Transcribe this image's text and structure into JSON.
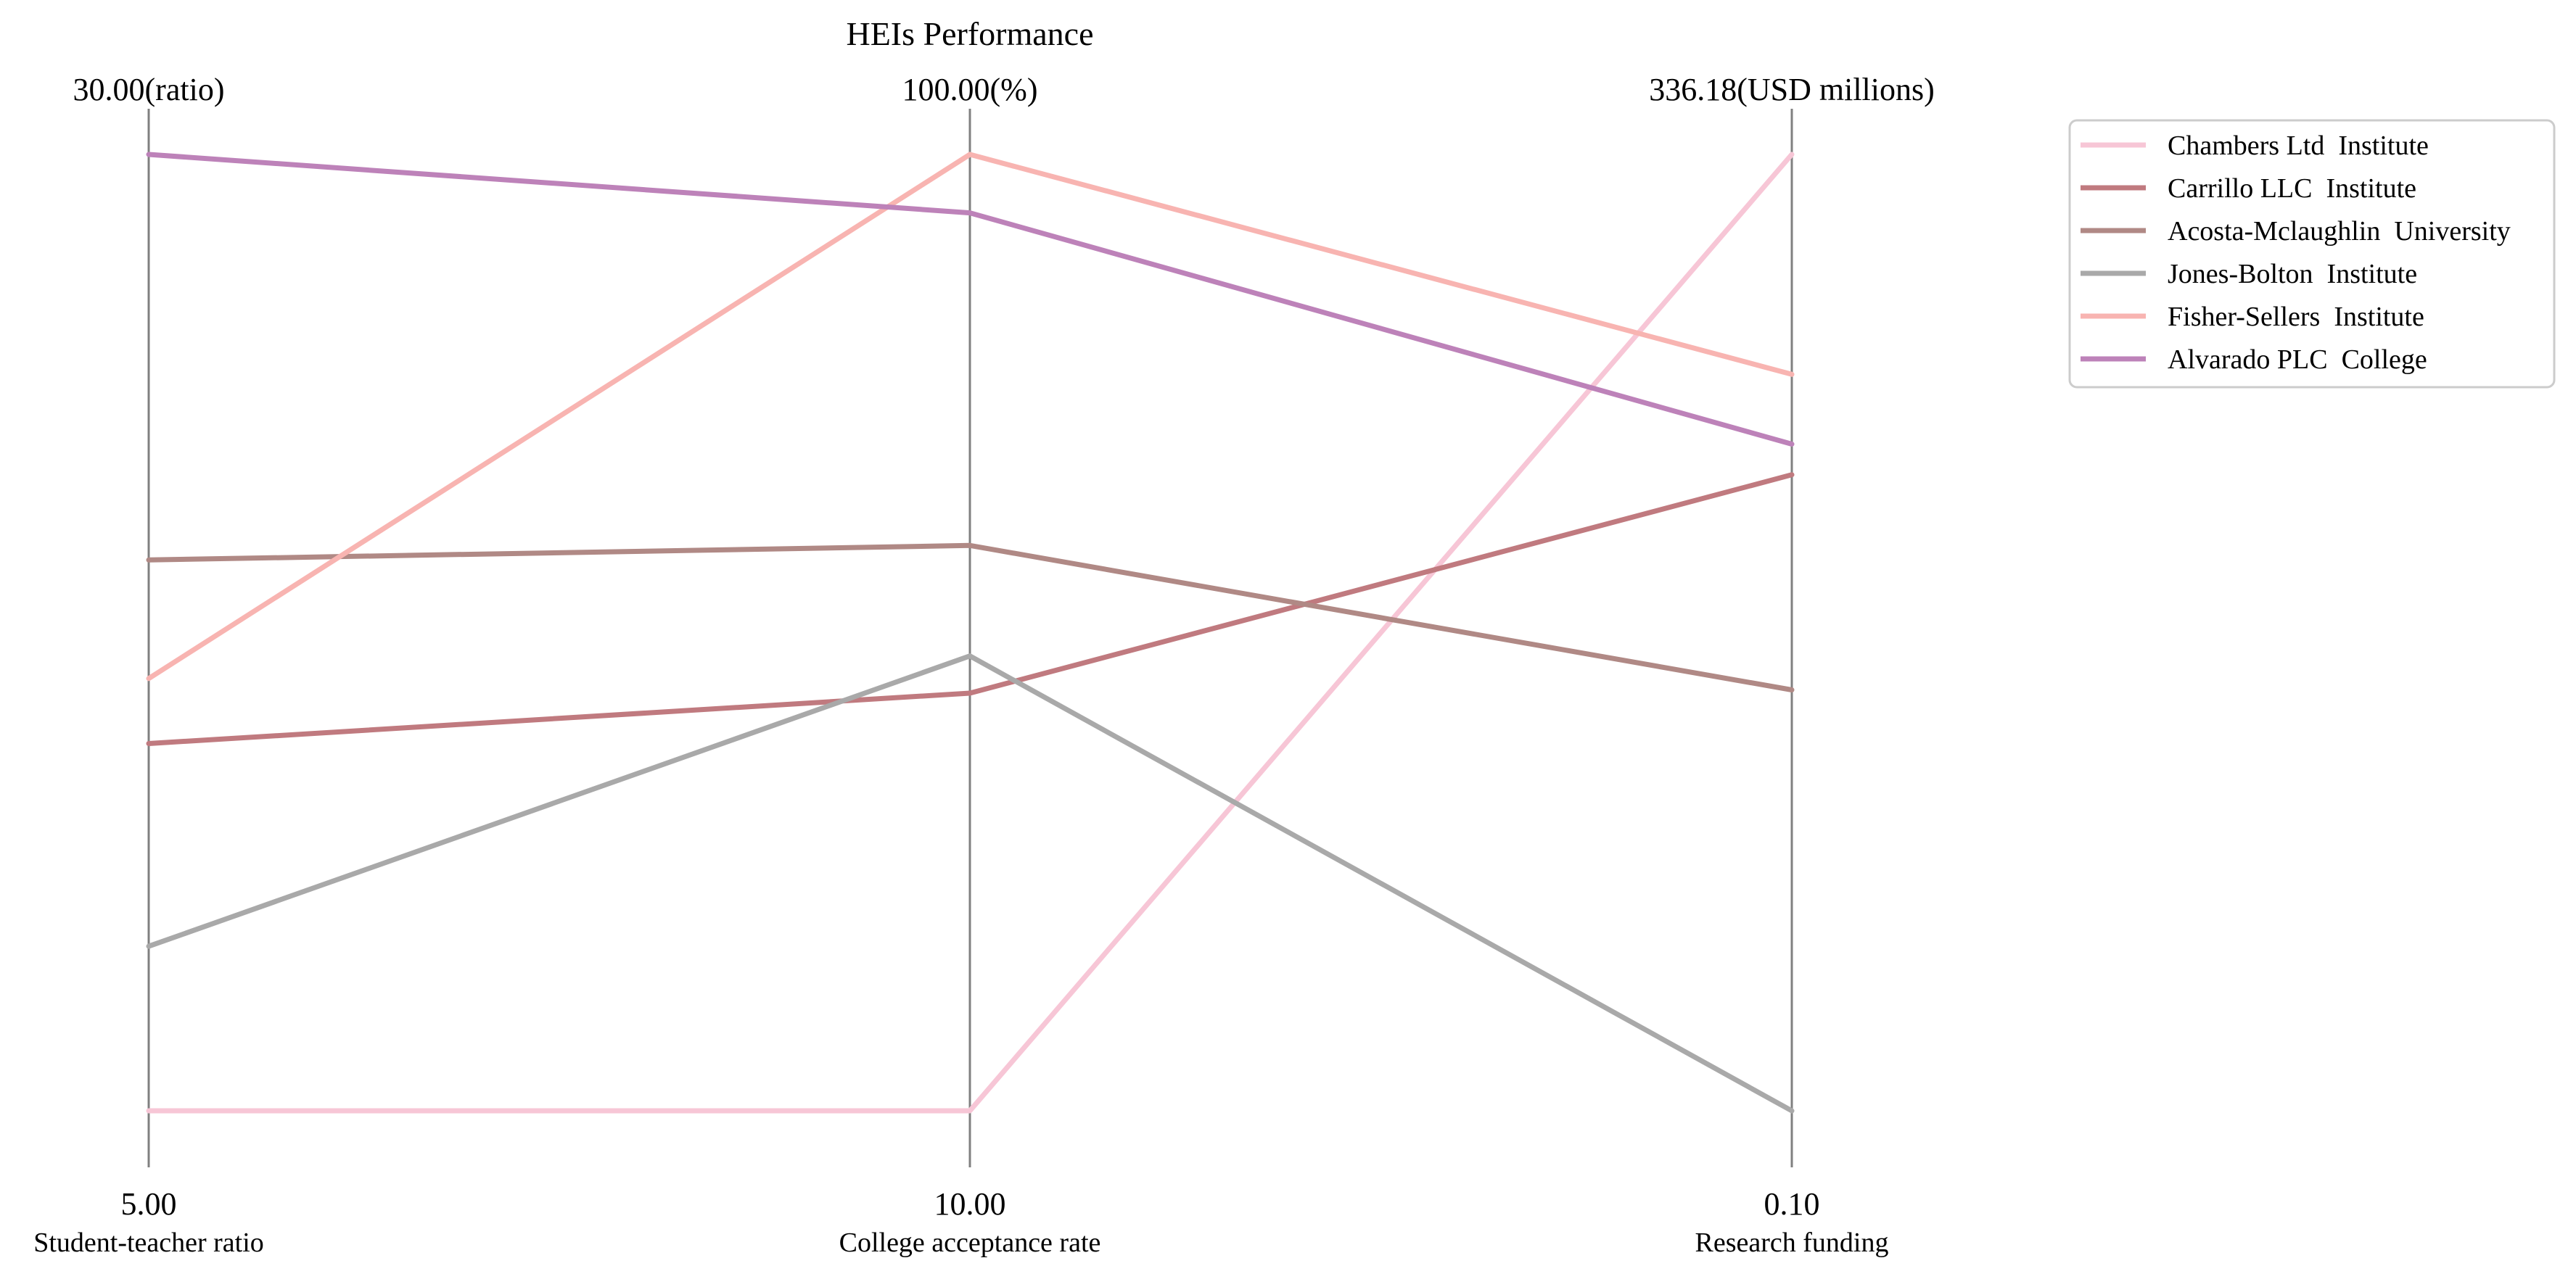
{
  "chart_data": {
    "type": "parallel_coordinates",
    "title": "HEIs Performance",
    "axes": [
      {
        "name": "Student-teacher ratio",
        "unit": "ratio",
        "min": 5.0,
        "max": 30.0,
        "min_label": "5.00",
        "max_label": "30.00(ratio)"
      },
      {
        "name": "College acceptance rate",
        "unit": "%",
        "min": 10.0,
        "max": 100.0,
        "min_label": "10.00",
        "max_label": "100.00(%)"
      },
      {
        "name": "Research funding",
        "unit": "USD millions",
        "min": 0.1,
        "max": 336.18,
        "min_label": "0.10",
        "max_label": "336.18(USD millions)"
      }
    ],
    "series": [
      {
        "name": "Chambers Ltd  Institute",
        "color": "#f7c6d6",
        "values": [
          5.0,
          10.0,
          336.18
        ]
      },
      {
        "name": "Carrillo LLC  Institute",
        "color": "#c07a7f",
        "values": [
          14.6,
          49.3,
          223.6
        ]
      },
      {
        "name": "Acosta-Mclaughlin  University",
        "color": "#b08985",
        "values": [
          19.4,
          63.2,
          148.0
        ]
      },
      {
        "name": "Jones-Bolton  Institute",
        "color": "#a9a9a9",
        "values": [
          9.3,
          52.8,
          0.1
        ]
      },
      {
        "name": "Fisher-Sellers  Institute",
        "color": "#f8b4b1",
        "values": [
          16.3,
          100.0,
          258.9
        ]
      },
      {
        "name": "Alvarado PLC  College",
        "color": "#bd82b9",
        "values": [
          30.0,
          94.5,
          234.4
        ]
      }
    ],
    "legend_position": "top-right",
    "grid": false
  }
}
